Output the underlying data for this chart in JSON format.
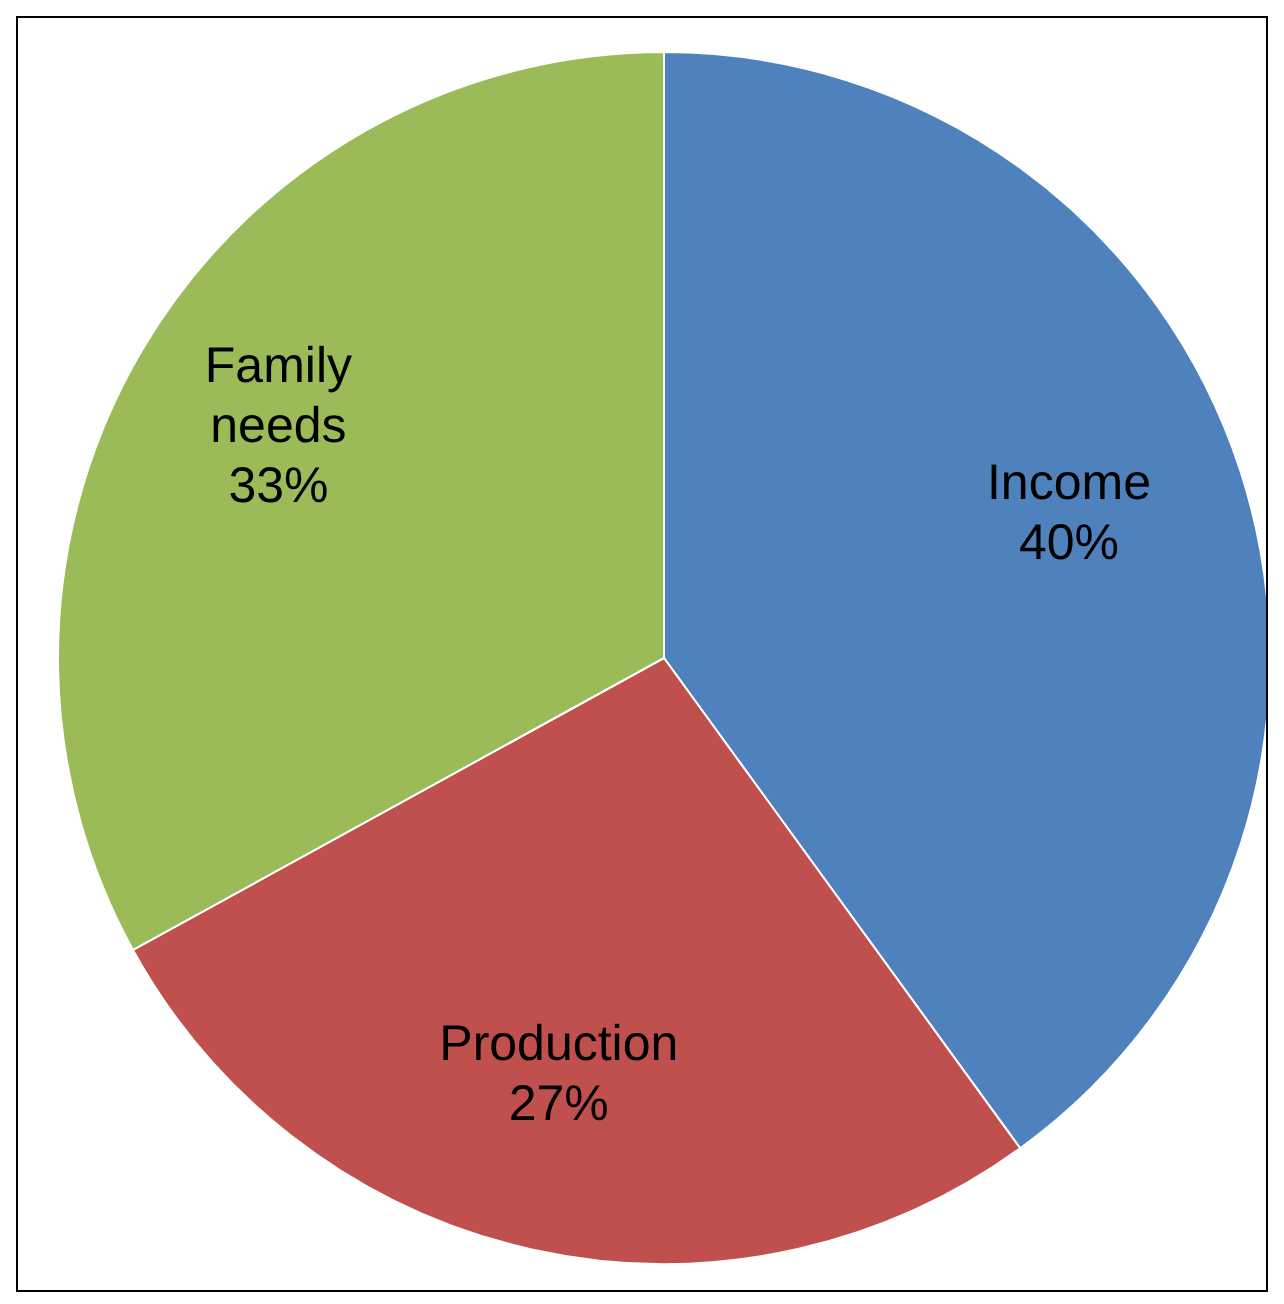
{
  "chart_data": {
    "type": "pie",
    "categories": [
      "Income",
      "Production",
      "Family needs"
    ],
    "values": [
      40,
      27,
      33
    ],
    "value_labels": [
      "40%",
      "27%",
      "33%"
    ],
    "colors": [
      "#4f81bd",
      "#c0504d",
      "#9bbb59"
    ],
    "legend": false
  }
}
